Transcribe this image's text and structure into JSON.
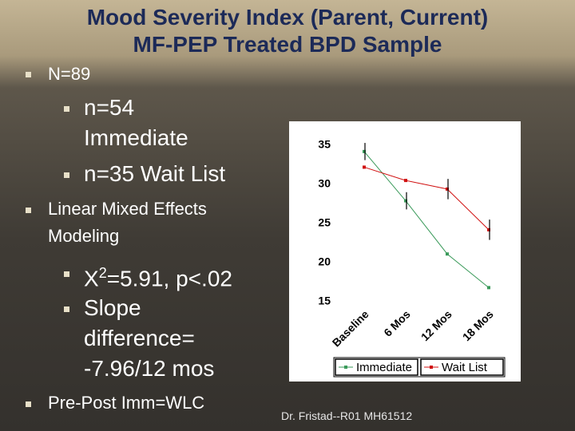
{
  "slide": {
    "title_lines": [
      "Mood Severity Index (Parent, Current)",
      "MF-PEP  Treated BPD Sample"
    ],
    "bullet_n": "N=89",
    "sub_immediate": "n=54 Immediate",
    "sub_waitlist": "n=35 Wait List",
    "bullet_model": "Linear Mixed Effects Modeling",
    "chi_square": {
      "symbol": "X",
      "superscript": "2",
      "rest": "=5.91, p<.02"
    },
    "slope": "Slope difference= -7.96/12 mos",
    "bullet_prepost": "Pre-Post Imm=WLC",
    "footer": "Dr. Fristad--R01 MH61512"
  },
  "chart_data": {
    "type": "line",
    "categories": [
      "Baseline",
      "6 Mos",
      "12 Mos",
      "18 Mos"
    ],
    "series": [
      {
        "name": "Immediate",
        "color": "#3a9a5a",
        "values": [
          34.2,
          27.9,
          21.1,
          16.8
        ],
        "errors": [
          1.1,
          1.1,
          null,
          null
        ]
      },
      {
        "name": "Wait List",
        "color": "#d01010",
        "values": [
          32.2,
          30.5,
          29.4,
          24.2
        ],
        "errors": [
          null,
          null,
          1.3,
          1.3
        ]
      }
    ],
    "ylim": [
      15,
      35
    ],
    "yticks": [
      15,
      20,
      25,
      30,
      35
    ],
    "grid": false,
    "legend": "bottom"
  }
}
